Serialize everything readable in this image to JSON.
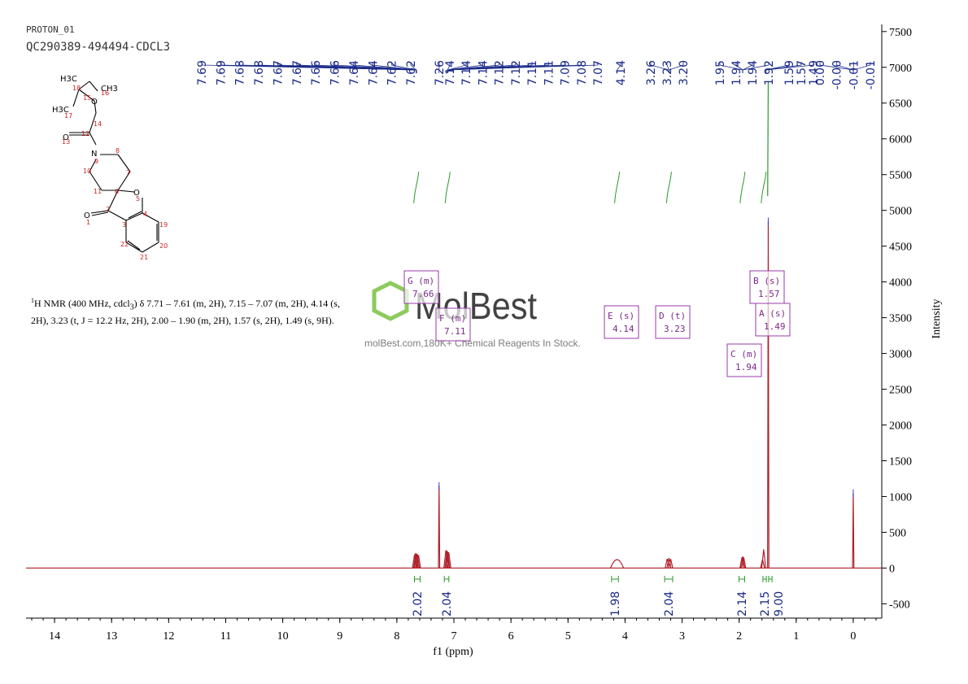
{
  "header": {
    "experiment": "PROTON_01",
    "sample": "QC290389-494494-CDCL3"
  },
  "description": {
    "prefix": "H NMR (400 MHz, cdcl",
    "sup": "1",
    "rest": ") δ 7.71 – 7.61 (m, 2H), 7.15 – 7.07 (m, 2H), 4.14 (s, 2H), 3.23 (t, J = 12.2 Hz, 2H), 2.00 – 1.90 (m, 2H), 1.57 (s, 2H), 1.49 (s, 9H).",
    "sub": "3"
  },
  "watermark": {
    "brand": "MolBest",
    "tagline": "molBest.com,180K+ Chemical Reagents In Stock."
  },
  "colors": {
    "spectrum": "#b0202a",
    "peak_labels": "#1a2a8a",
    "integral": "#2a9a2a",
    "multiplet": "#9a3aa8",
    "axis": "#000000"
  },
  "chart_data": {
    "type": "line",
    "xlabel": "f1 (ppm)",
    "ylabel": "Intensity",
    "xlim": [
      14.5,
      -0.5
    ],
    "ylim": [
      -700,
      7600
    ],
    "x_ticks": [
      14,
      13,
      12,
      11,
      10,
      9,
      8,
      7,
      6,
      5,
      4,
      3,
      2,
      1,
      0
    ],
    "y_ticks": [
      7500,
      7000,
      6500,
      6000,
      5500,
      5000,
      4500,
      4000,
      3500,
      3000,
      2500,
      2000,
      1500,
      1000,
      500,
      0,
      -500
    ],
    "peaks": [
      {
        "ppm": 7.69,
        "h": 190
      },
      {
        "ppm": 7.67,
        "h": 210
      },
      {
        "ppm": 7.66,
        "h": 200
      },
      {
        "ppm": 7.64,
        "h": 195
      },
      {
        "ppm": 7.62,
        "h": 180
      },
      {
        "ppm": 7.26,
        "h": 1150
      },
      {
        "ppm": 7.14,
        "h": 250
      },
      {
        "ppm": 7.12,
        "h": 240
      },
      {
        "ppm": 7.11,
        "h": 230
      },
      {
        "ppm": 7.09,
        "h": 220
      },
      {
        "ppm": 4.14,
        "h": 120
      },
      {
        "ppm": 3.26,
        "h": 130
      },
      {
        "ppm": 3.23,
        "h": 140
      },
      {
        "ppm": 3.2,
        "h": 125
      },
      {
        "ppm": 1.95,
        "h": 150
      },
      {
        "ppm": 1.94,
        "h": 160
      },
      {
        "ppm": 1.92,
        "h": 150
      },
      {
        "ppm": 1.59,
        "h": 120
      },
      {
        "ppm": 1.57,
        "h": 260
      },
      {
        "ppm": 1.49,
        "h": 4850
      },
      {
        "ppm": 0.0,
        "h": 1050
      }
    ],
    "peak_labels": [
      "7.69",
      "7.69",
      "7.68",
      "7.68",
      "7.67",
      "7.67",
      "7.66",
      "7.66",
      "7.64",
      "7.64",
      "7.62",
      "7.62",
      "7.26",
      "7.14",
      "7.14",
      "7.14",
      "7.12",
      "7.12",
      "7.11",
      "7.11",
      "7.09",
      "7.08",
      "7.07",
      "4.14",
      "3.26",
      "3.23",
      "3.20",
      "1.95",
      "1.94",
      "1.94",
      "1.92",
      "1.59",
      "1.57",
      "1.49",
      "0.00",
      "-0.00",
      "-0.01",
      "-0.01"
    ],
    "integrals": [
      {
        "ppm": 7.66,
        "from": 7.71,
        "to": 7.61,
        "value": "2.02"
      },
      {
        "ppm": 7.11,
        "from": 7.15,
        "to": 7.07,
        "value": "2.04"
      },
      {
        "ppm": 4.14,
        "from": 4.2,
        "to": 4.08,
        "value": "1.98"
      },
      {
        "ppm": 3.23,
        "from": 3.3,
        "to": 3.16,
        "value": "2.04"
      },
      {
        "ppm": 1.94,
        "from": 2.0,
        "to": 1.9,
        "value": "2.14"
      },
      {
        "ppm": 1.57,
        "from": 1.6,
        "to": 1.54,
        "value": "2.15"
      },
      {
        "ppm": 1.49,
        "from": 1.52,
        "to": 1.46,
        "value": "9.00"
      }
    ],
    "multiplets": [
      {
        "id": "G",
        "mult": "m",
        "shift": "7.66"
      },
      {
        "id": "F",
        "mult": "m",
        "shift": "7.11"
      },
      {
        "id": "E",
        "mult": "s",
        "shift": "4.14"
      },
      {
        "id": "D",
        "mult": "t",
        "shift": "3.23"
      },
      {
        "id": "C",
        "mult": "m",
        "shift": "1.94"
      },
      {
        "id": "B",
        "mult": "s",
        "shift": "1.57"
      },
      {
        "id": "A",
        "mult": "s",
        "shift": "1.49"
      }
    ]
  },
  "structure": {
    "atoms": [
      "H3C",
      "CH3",
      "H3C",
      "O",
      "O",
      "N",
      "O",
      "O",
      "18",
      "16",
      "15",
      "17",
      "14",
      "12",
      "13",
      "9",
      "8",
      "7",
      "10",
      "11",
      "6",
      "5",
      "2",
      "1",
      "3",
      "4",
      "19",
      "20",
      "21",
      "22"
    ]
  }
}
